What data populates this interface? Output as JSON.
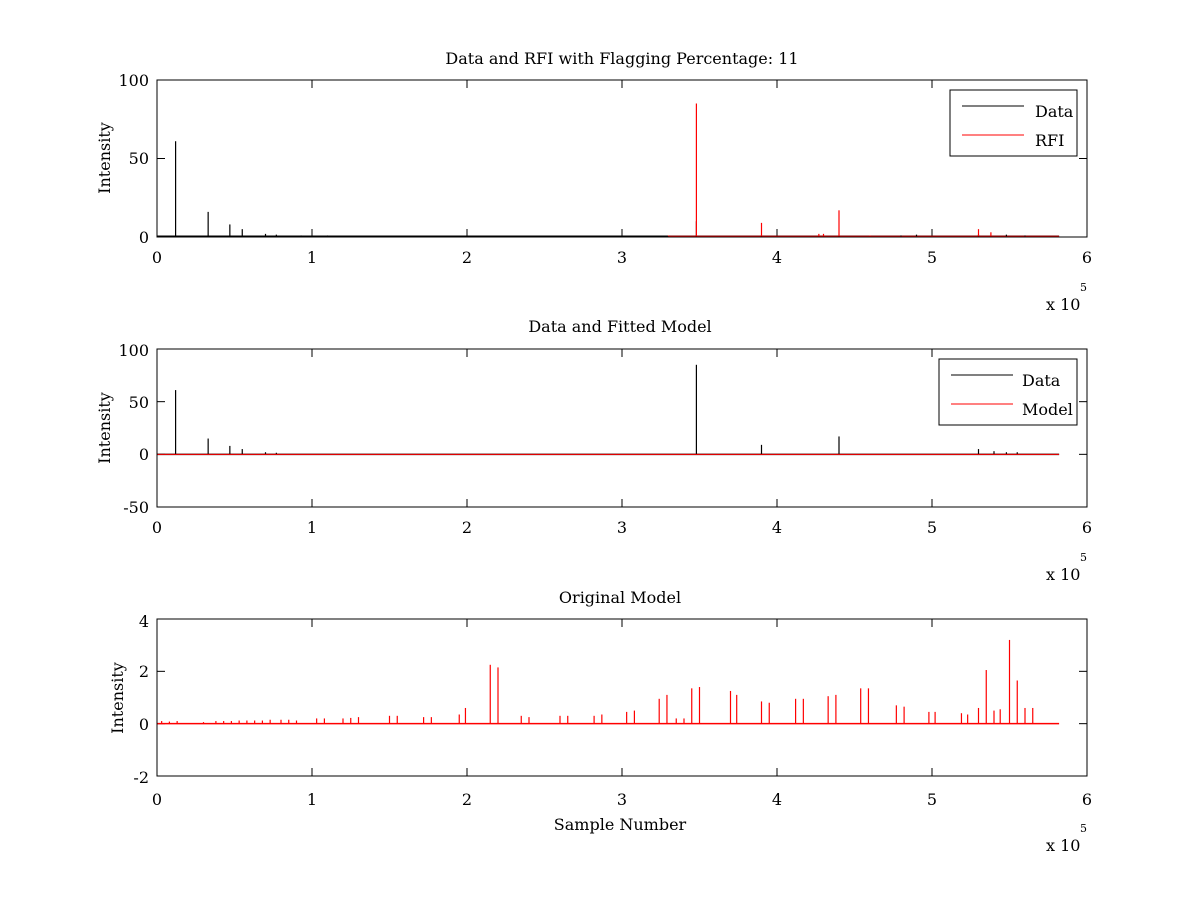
{
  "figure": {
    "background": "#ffffff",
    "line_colors": {
      "data": "#000000",
      "rfi": "#ff0000",
      "model": "#ff0000"
    }
  },
  "chart_data": [
    {
      "type": "line",
      "title": "Data and RFI with Flagging Percentage: 11",
      "xlabel": "",
      "ylabel": "Intensity",
      "xlim": [
        0,
        6
      ],
      "ylim": [
        0,
        100
      ],
      "x_ticks": [
        "0",
        "1",
        "2",
        "3",
        "4",
        "5",
        "6"
      ],
      "y_ticks": [
        "0",
        "50",
        "100"
      ],
      "y_tick_values": [
        0,
        50,
        100
      ],
      "x_exponent": "x 10",
      "x_exponent_power": "5",
      "grid": false,
      "legend_position": "top-right",
      "series": [
        {
          "name": "Data",
          "color": "#000000",
          "x": [
            0.12,
            0.33,
            0.47,
            0.55,
            0.7,
            0.77,
            0.93,
            1.1,
            1.5,
            2.0,
            3.48,
            3.9,
            4.4,
            4.8,
            4.9,
            5.3,
            5.48,
            5.6
          ],
          "y": [
            61,
            16,
            8,
            5,
            2,
            1.5,
            1,
            1,
            0.8,
            0.5,
            10,
            1,
            1,
            1,
            1.5,
            1.5,
            1.5,
            1
          ]
        },
        {
          "name": "RFI",
          "color": "#ff0000",
          "x": [
            3.3,
            3.48,
            3.9,
            4.27,
            4.3,
            4.4,
            4.6,
            5.3,
            5.38
          ],
          "y": [
            1,
            85,
            9,
            2,
            2,
            17,
            1,
            5,
            3
          ]
        }
      ],
      "baseline": 0.5,
      "baseline_end": 5.82
    },
    {
      "type": "line",
      "title": "Data and Fitted Model",
      "xlabel": "",
      "ylabel": "Intensity",
      "xlim": [
        0,
        6
      ],
      "ylim": [
        -50,
        100
      ],
      "x_ticks": [
        "0",
        "1",
        "2",
        "3",
        "4",
        "5",
        "6"
      ],
      "y_ticks": [
        "-50",
        "0",
        "50",
        "100"
      ],
      "y_tick_values": [
        -50,
        0,
        50,
        100
      ],
      "x_exponent": "x 10",
      "x_exponent_power": "5",
      "grid": false,
      "legend_position": "top-right",
      "series": [
        {
          "name": "Data",
          "color": "#000000",
          "x": [
            0.12,
            0.33,
            0.47,
            0.55,
            0.7,
            0.77,
            3.48,
            3.9,
            4.4,
            5.3,
            5.4,
            5.48,
            5.55
          ],
          "y": [
            61,
            15,
            8,
            5,
            2,
            1.5,
            85,
            9,
            17,
            5,
            3,
            2,
            2
          ]
        },
        {
          "name": "Model",
          "color": "#ff0000",
          "x": [
            0,
            5.82
          ],
          "y": [
            0,
            0
          ]
        }
      ],
      "baseline": 0,
      "baseline_end": 5.82
    },
    {
      "type": "line",
      "title": "Original Model",
      "xlabel": "Sample Number",
      "ylabel": "Intensity",
      "xlim": [
        0,
        6
      ],
      "ylim": [
        -2,
        4
      ],
      "x_ticks": [
        "0",
        "1",
        "2",
        "3",
        "4",
        "5",
        "6"
      ],
      "y_ticks": [
        "-2",
        "0",
        "2",
        "4"
      ],
      "y_tick_values": [
        -2,
        0,
        2,
        4
      ],
      "x_exponent": "x 10",
      "x_exponent_power": "5",
      "grid": false,
      "legend_position": "none",
      "series": [
        {
          "name": "",
          "color": "#ff0000",
          "x": [
            0.03,
            0.08,
            0.13,
            0.3,
            0.38,
            0.43,
            0.48,
            0.53,
            0.58,
            0.63,
            0.68,
            0.73,
            0.8,
            0.85,
            0.9,
            1.03,
            1.08,
            1.2,
            1.25,
            1.3,
            1.5,
            1.55,
            1.72,
            1.77,
            1.95,
            1.99,
            2.15,
            2.2,
            2.35,
            2.4,
            2.6,
            2.65,
            2.82,
            2.87,
            3.03,
            3.08,
            3.24,
            3.29,
            3.35,
            3.4,
            3.45,
            3.5,
            3.7,
            3.74,
            3.9,
            3.95,
            4.12,
            4.17,
            4.33,
            4.38,
            4.54,
            4.59,
            4.77,
            4.82,
            4.98,
            5.02,
            5.19,
            5.23,
            5.3,
            5.35,
            5.4,
            5.44,
            5.5,
            5.55,
            5.6,
            5.65
          ],
          "y": [
            0.1,
            0.08,
            0.1,
            0.06,
            0.1,
            0.1,
            0.1,
            0.12,
            0.12,
            0.12,
            0.12,
            0.15,
            0.15,
            0.15,
            0.12,
            0.2,
            0.2,
            0.2,
            0.22,
            0.25,
            0.3,
            0.3,
            0.25,
            0.25,
            0.35,
            0.6,
            2.25,
            2.15,
            0.3,
            0.25,
            0.3,
            0.3,
            0.3,
            0.35,
            0.45,
            0.5,
            0.95,
            1.1,
            0.2,
            0.2,
            1.35,
            1.4,
            1.25,
            1.1,
            0.85,
            0.8,
            0.95,
            0.95,
            1.05,
            1.1,
            1.35,
            1.35,
            0.7,
            0.65,
            0.45,
            0.45,
            0.4,
            0.35,
            0.6,
            2.05,
            0.5,
            0.55,
            3.2,
            1.65,
            0.6,
            0.6
          ]
        }
      ],
      "baseline": 0,
      "baseline_end": 5.82
    }
  ]
}
